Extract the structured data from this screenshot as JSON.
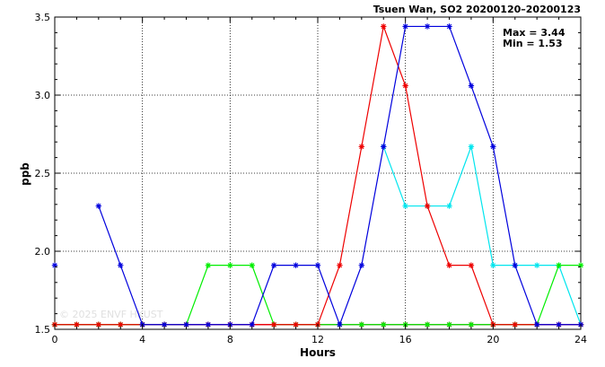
{
  "chart_data": {
    "type": "line",
    "title": "Tsuen Wan, SO2 20200120–20200123",
    "xlabel": "Hours",
    "ylabel": "ppb",
    "xlim": [
      0,
      24
    ],
    "ylim": [
      1.5,
      3.5
    ],
    "xticks": [
      "0",
      "4",
      "8",
      "12",
      "16",
      "20",
      "24"
    ],
    "yticks": [
      "1.5",
      "2.0",
      "2.5",
      "3.0",
      "3.5"
    ],
    "grid": true,
    "max_label": "Max = 3.44",
    "min_label": "Min = 1.53",
    "watermark": "© 2025 ENVF HKUST",
    "x": [
      0,
      1,
      2,
      3,
      4,
      5,
      6,
      7,
      8,
      9,
      10,
      11,
      12,
      13,
      14,
      15,
      16,
      17,
      18,
      19,
      20,
      21,
      22,
      23,
      24
    ],
    "series": [
      {
        "color": "#0000dd",
        "values": [
          1.91,
          null,
          2.29,
          1.91,
          1.53,
          1.53,
          1.53,
          1.53,
          1.53,
          1.53,
          1.91,
          1.91,
          1.91,
          1.53,
          1.91,
          2.67,
          3.44,
          3.44,
          3.44,
          3.06,
          2.67,
          1.91,
          1.53,
          1.53,
          1.53
        ]
      },
      {
        "color": "#ee0000",
        "values": [
          1.53,
          1.53,
          1.53,
          1.53,
          1.53,
          1.53,
          1.53,
          1.53,
          1.53,
          1.53,
          1.53,
          1.53,
          1.53,
          1.91,
          2.67,
          3.44,
          3.06,
          2.29,
          1.91,
          1.91,
          1.53,
          1.53,
          1.53,
          1.53,
          1.53
        ]
      },
      {
        "color": "#00ee00",
        "values": [
          1.53,
          1.53,
          1.53,
          1.53,
          1.53,
          1.53,
          1.53,
          1.91,
          1.91,
          1.91,
          1.53,
          1.53,
          1.53,
          1.53,
          1.53,
          1.53,
          1.53,
          1.53,
          1.53,
          1.53,
          1.53,
          1.53,
          1.53,
          1.91,
          1.91
        ]
      },
      {
        "color": "#00e5ee",
        "values": [
          null,
          null,
          null,
          null,
          null,
          null,
          null,
          null,
          null,
          null,
          null,
          null,
          null,
          null,
          null,
          2.67,
          2.29,
          2.29,
          2.29,
          2.67,
          1.91,
          1.91,
          1.91,
          1.91,
          1.53
        ]
      },
      {
        "color": "#cc0066",
        "values": [
          1.53,
          1.53,
          1.53,
          1.53,
          1.53,
          1.53,
          1.53,
          1.53,
          1.53,
          1.53,
          1.53,
          1.53,
          1.53,
          1.53,
          1.53,
          1.53,
          1.53,
          1.53,
          1.53,
          1.53,
          1.53,
          1.53,
          1.53,
          1.53,
          1.53
        ]
      },
      {
        "color": "#cc7700",
        "values": [
          1.53,
          1.53,
          1.53,
          1.53,
          1.53,
          1.53,
          1.53,
          1.53,
          1.53,
          1.53,
          1.53,
          1.53,
          1.53,
          1.53,
          1.53,
          1.53,
          1.53,
          1.53,
          1.53,
          1.53,
          1.53,
          1.53,
          1.53,
          1.53,
          1.53
        ]
      }
    ]
  }
}
